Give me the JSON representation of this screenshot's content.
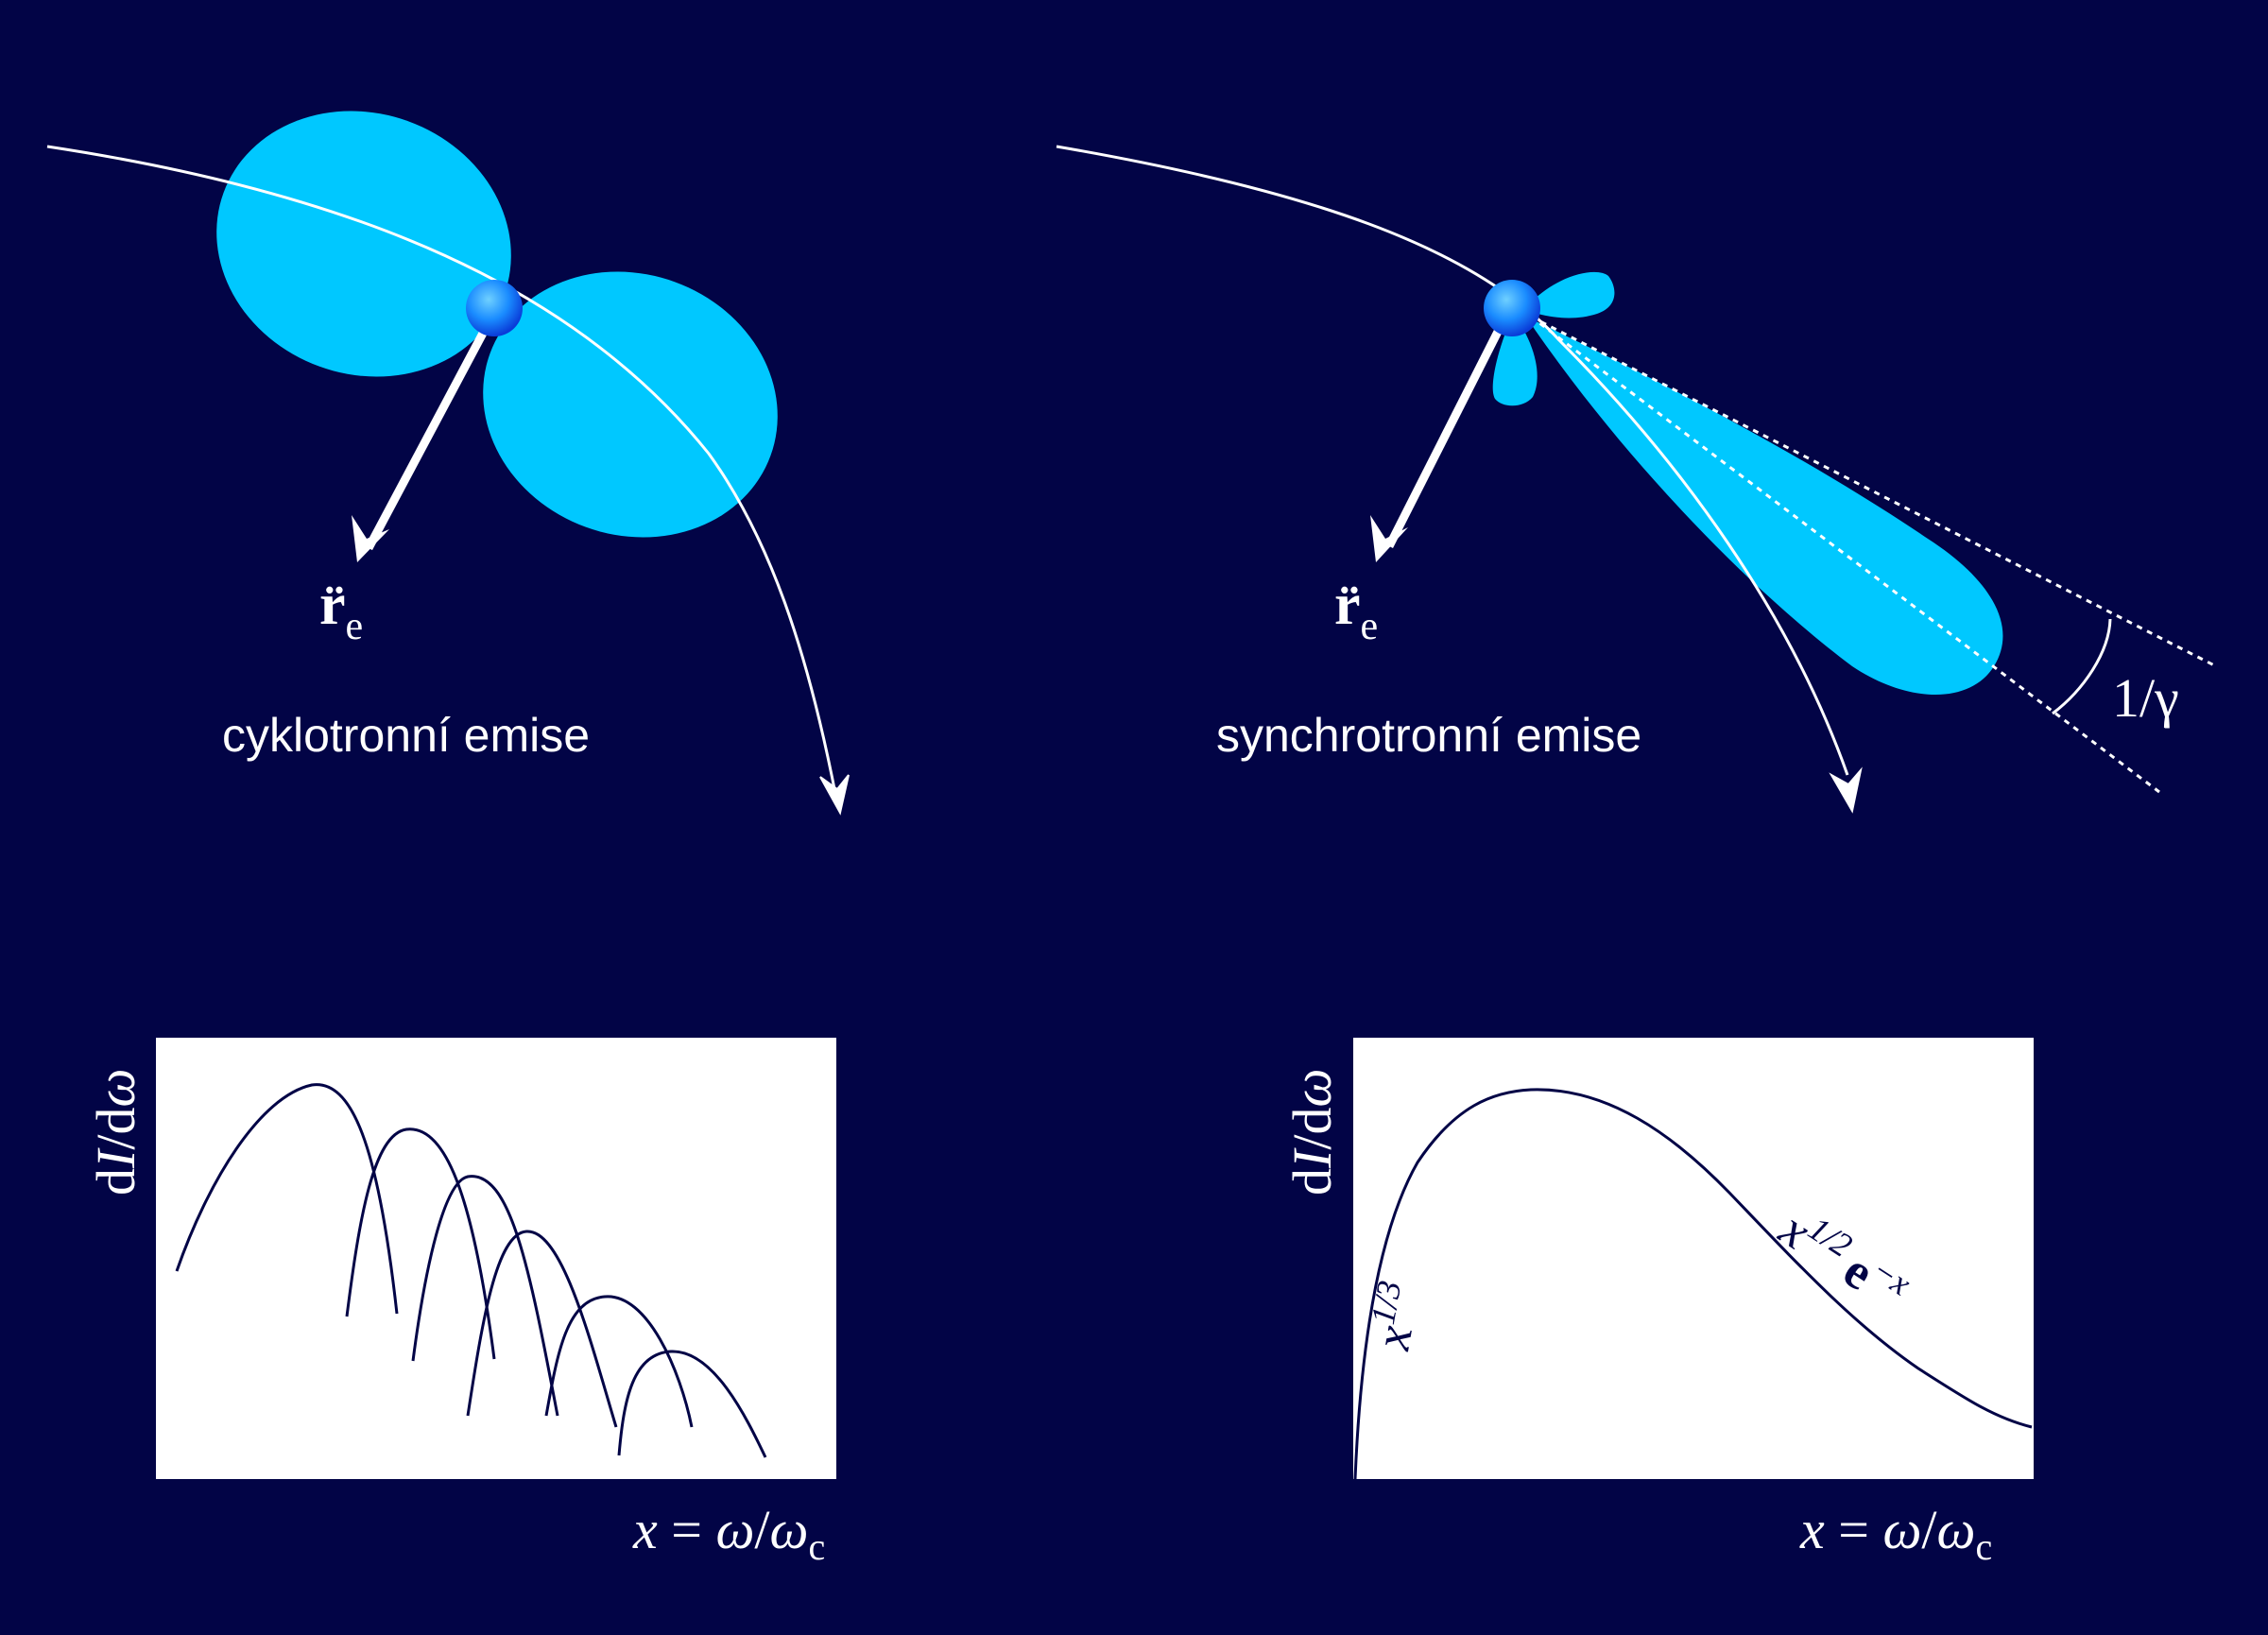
{
  "colors": {
    "background": "#020446",
    "lobe": "#00c8ff",
    "trajectory": "#ffffff",
    "axis_box": "#ffffff",
    "spectrum_line": "#020446",
    "electron": "#1a8cff"
  },
  "left_panel": {
    "caption": "cyklotronní emise",
    "accel_symbol": "r̈",
    "accel_subscript": "e"
  },
  "right_panel": {
    "caption": "synchrotronní emise",
    "accel_symbol": "r̈",
    "accel_subscript": "e",
    "angle_label": "1/γ"
  },
  "left_plot": {
    "ylabel": "dI/dω",
    "xlabel": "x = ω/ωc"
  },
  "right_plot": {
    "ylabel": "dI/dω",
    "xlabel": "x = ω/ωc",
    "low_note_base": "x",
    "low_note_exp": "1/3",
    "high_note_base": "x",
    "high_note_exp": "1/2",
    "high_note_e": "e",
    "high_note_e_exp": "−x"
  }
}
